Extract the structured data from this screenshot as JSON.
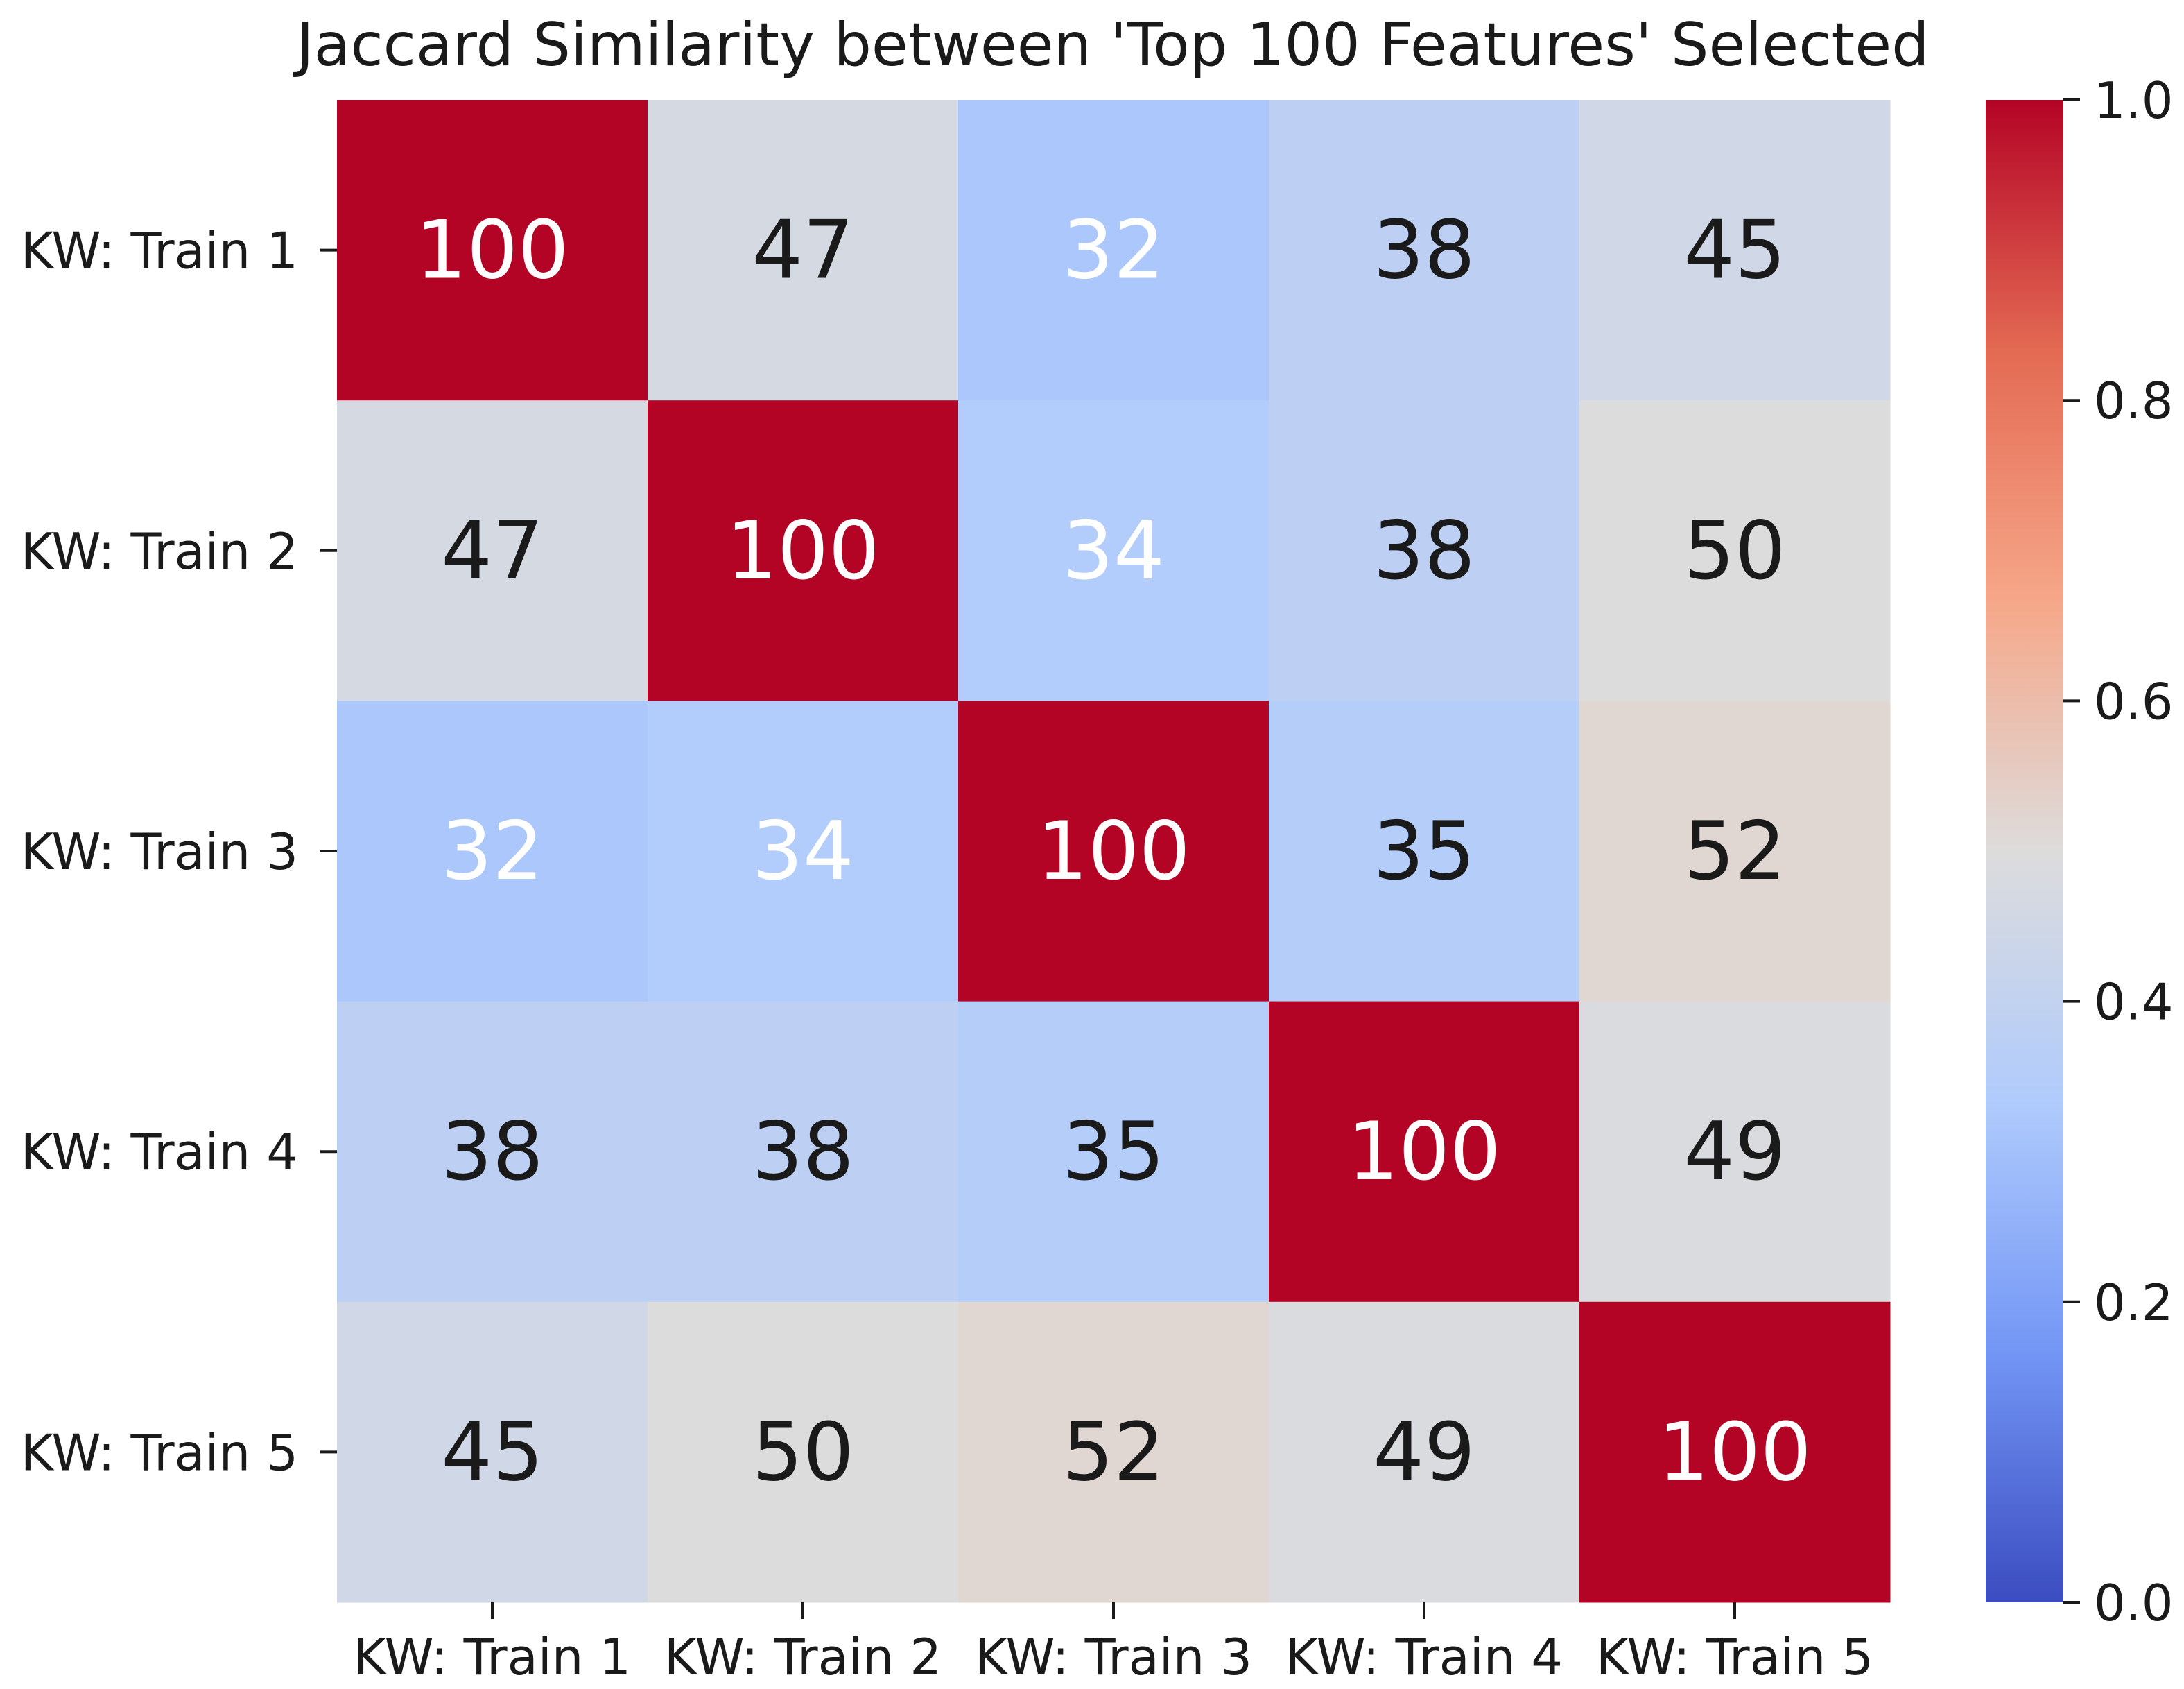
{
  "chart_data": {
    "type": "heatmap",
    "title": "Jaccard Similarity between 'Top 100 Features' Selected",
    "rows": [
      "KW: Train 1",
      "KW: Train 2",
      "KW: Train 3",
      "KW: Train 4",
      "KW: Train 5"
    ],
    "columns": [
      "KW: Train 1",
      "KW: Train 2",
      "KW: Train 3",
      "KW: Train 4",
      "KW: Train 5"
    ],
    "values": [
      [
        100,
        47,
        32,
        38,
        45
      ],
      [
        47,
        100,
        34,
        38,
        50
      ],
      [
        32,
        34,
        100,
        35,
        52
      ],
      [
        38,
        38,
        35,
        100,
        49
      ],
      [
        45,
        50,
        52,
        49,
        100
      ]
    ],
    "colormap": "coolwarm",
    "colorbar": {
      "range": [
        0.0,
        1.0
      ],
      "ticks": [
        "0.0",
        "0.2",
        "0.4",
        "0.6",
        "0.8",
        "1.0"
      ],
      "stops": [
        "#3b4cc0",
        "#7396f5",
        "#b0cbfc",
        "#dddcdc",
        "#f6a789",
        "#e36a53",
        "#b40426"
      ]
    }
  }
}
